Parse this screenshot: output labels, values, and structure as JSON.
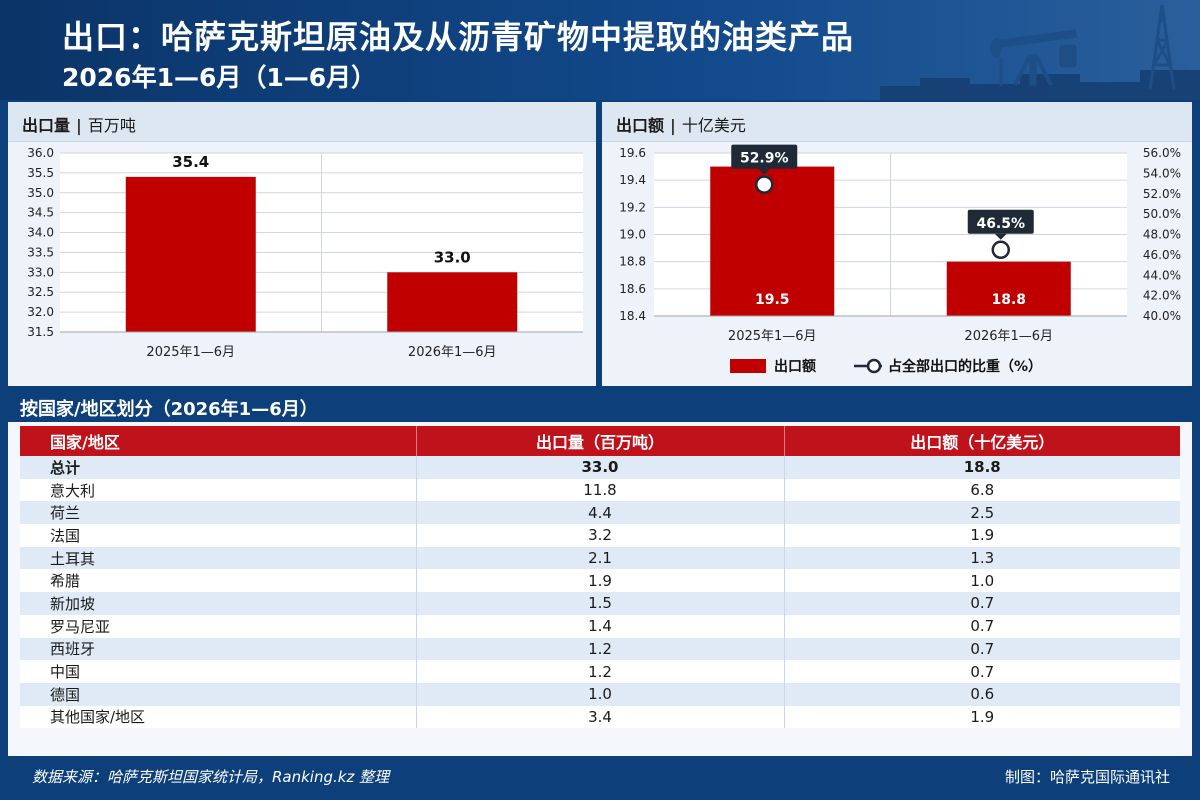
{
  "header": {
    "title": "出口：哈萨克斯坦原油及从沥青矿物中提取的油类产品",
    "subtitle": "2026年1—6月（1—6月）"
  },
  "colors": {
    "brand_blue": "#0d3f7a",
    "bar_red": "#c00000",
    "table_header_red": "#c0121b"
  },
  "icons": [
    "oil-pump-jack-icon",
    "oil-derrick-icon"
  ],
  "volume_chart": {
    "title": "出口量",
    "unit": "百万吨"
  },
  "value_chart": {
    "title": "出口额",
    "unit": "十亿美元",
    "legend": {
      "bar_label": "出口额",
      "line_label": "占全部出口的比重（%）"
    }
  },
  "chart_data": [
    {
      "type": "bar",
      "title": "出口量",
      "categories": [
        "2025年1—6月",
        "2026年1—6月"
      ],
      "values": [
        35.4,
        33.0
      ],
      "value_labels": [
        "35.4",
        "33.0"
      ],
      "ylim": [
        31.5,
        36.0
      ],
      "yticks": [
        "31.5",
        "32.0",
        "32.5",
        "33.0",
        "33.5",
        "34.0",
        "34.5",
        "35.0",
        "35.5",
        "36.0"
      ],
      "grid": true,
      "color": "#c00000"
    },
    {
      "type": "bar",
      "title": "出口额",
      "categories": [
        "2025年1—6月",
        "2026年1—6月"
      ],
      "values": [
        19.5,
        18.8
      ],
      "value_labels": [
        "19.5",
        "18.8"
      ],
      "ylim": [
        18.4,
        19.6
      ],
      "yticks": [
        "18.4",
        "18.6",
        "18.8",
        "19.0",
        "19.2",
        "19.4",
        "19.6"
      ],
      "secondary": {
        "type": "line",
        "name": "占全部出口的比重（%）",
        "values": [
          52.9,
          46.5
        ],
        "value_labels": [
          "52.9%",
          "46.5%"
        ],
        "ylim": [
          40.0,
          56.0
        ],
        "yticks": [
          "40.0%",
          "42.0%",
          "44.0%",
          "46.0%",
          "48.0%",
          "50.0%",
          "52.0%",
          "54.0%",
          "56.0%"
        ]
      },
      "grid": true,
      "legend_position": "bottom",
      "color": "#c00000"
    }
  ],
  "table": {
    "section_title": "按国家/地区划分（2026年1—6月）",
    "columns": [
      "国家/地区",
      "出口量（百万吨）",
      "出口额（十亿美元）"
    ],
    "rows": [
      [
        "总计",
        "33.0",
        "18.8"
      ],
      [
        "意大利",
        "11.8",
        "6.8"
      ],
      [
        "荷兰",
        "4.4",
        "2.5"
      ],
      [
        "法国",
        "3.2",
        "1.9"
      ],
      [
        "土耳其",
        "2.1",
        "1.3"
      ],
      [
        "希腊",
        "1.9",
        "1.0"
      ],
      [
        "新加坡",
        "1.5",
        "0.7"
      ],
      [
        "罗马尼亚",
        "1.4",
        "0.7"
      ],
      [
        "西班牙",
        "1.2",
        "0.7"
      ],
      [
        "中国",
        "1.2",
        "0.7"
      ],
      [
        "德国",
        "1.0",
        "0.6"
      ],
      [
        "其他国家/地区",
        "3.4",
        "1.9"
      ]
    ]
  },
  "footer": {
    "source": "数据来源：哈萨克斯坦国家统计局，Ranking.kz 整理",
    "credit": "制图：哈萨克国际通讯社"
  }
}
